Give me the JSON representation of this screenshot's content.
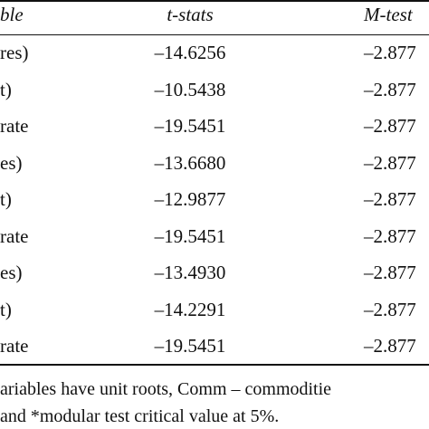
{
  "table": {
    "header": [
      "ble",
      "t-stats",
      "M-test"
    ],
    "rows": [
      [
        "res)",
        "–14.6256",
        "–2.877"
      ],
      [
        "t)",
        "–10.5438",
        "–2.877"
      ],
      [
        "rate",
        "–19.5451",
        "–2.877"
      ],
      [
        "es)",
        "–13.6680",
        "–2.877"
      ],
      [
        "t)",
        "–12.9877",
        "–2.877"
      ],
      [
        "rate",
        "–19.5451",
        "–2.877"
      ],
      [
        "es)",
        "–13.4930",
        "–2.877"
      ],
      [
        "t)",
        "–14.2291",
        "–2.877"
      ],
      [
        "rate",
        "–19.5451",
        "–2.877"
      ]
    ]
  },
  "footnote": [
    "ariables have unit roots, Comm – commoditie",
    "and *modular test critical value at 5%."
  ]
}
